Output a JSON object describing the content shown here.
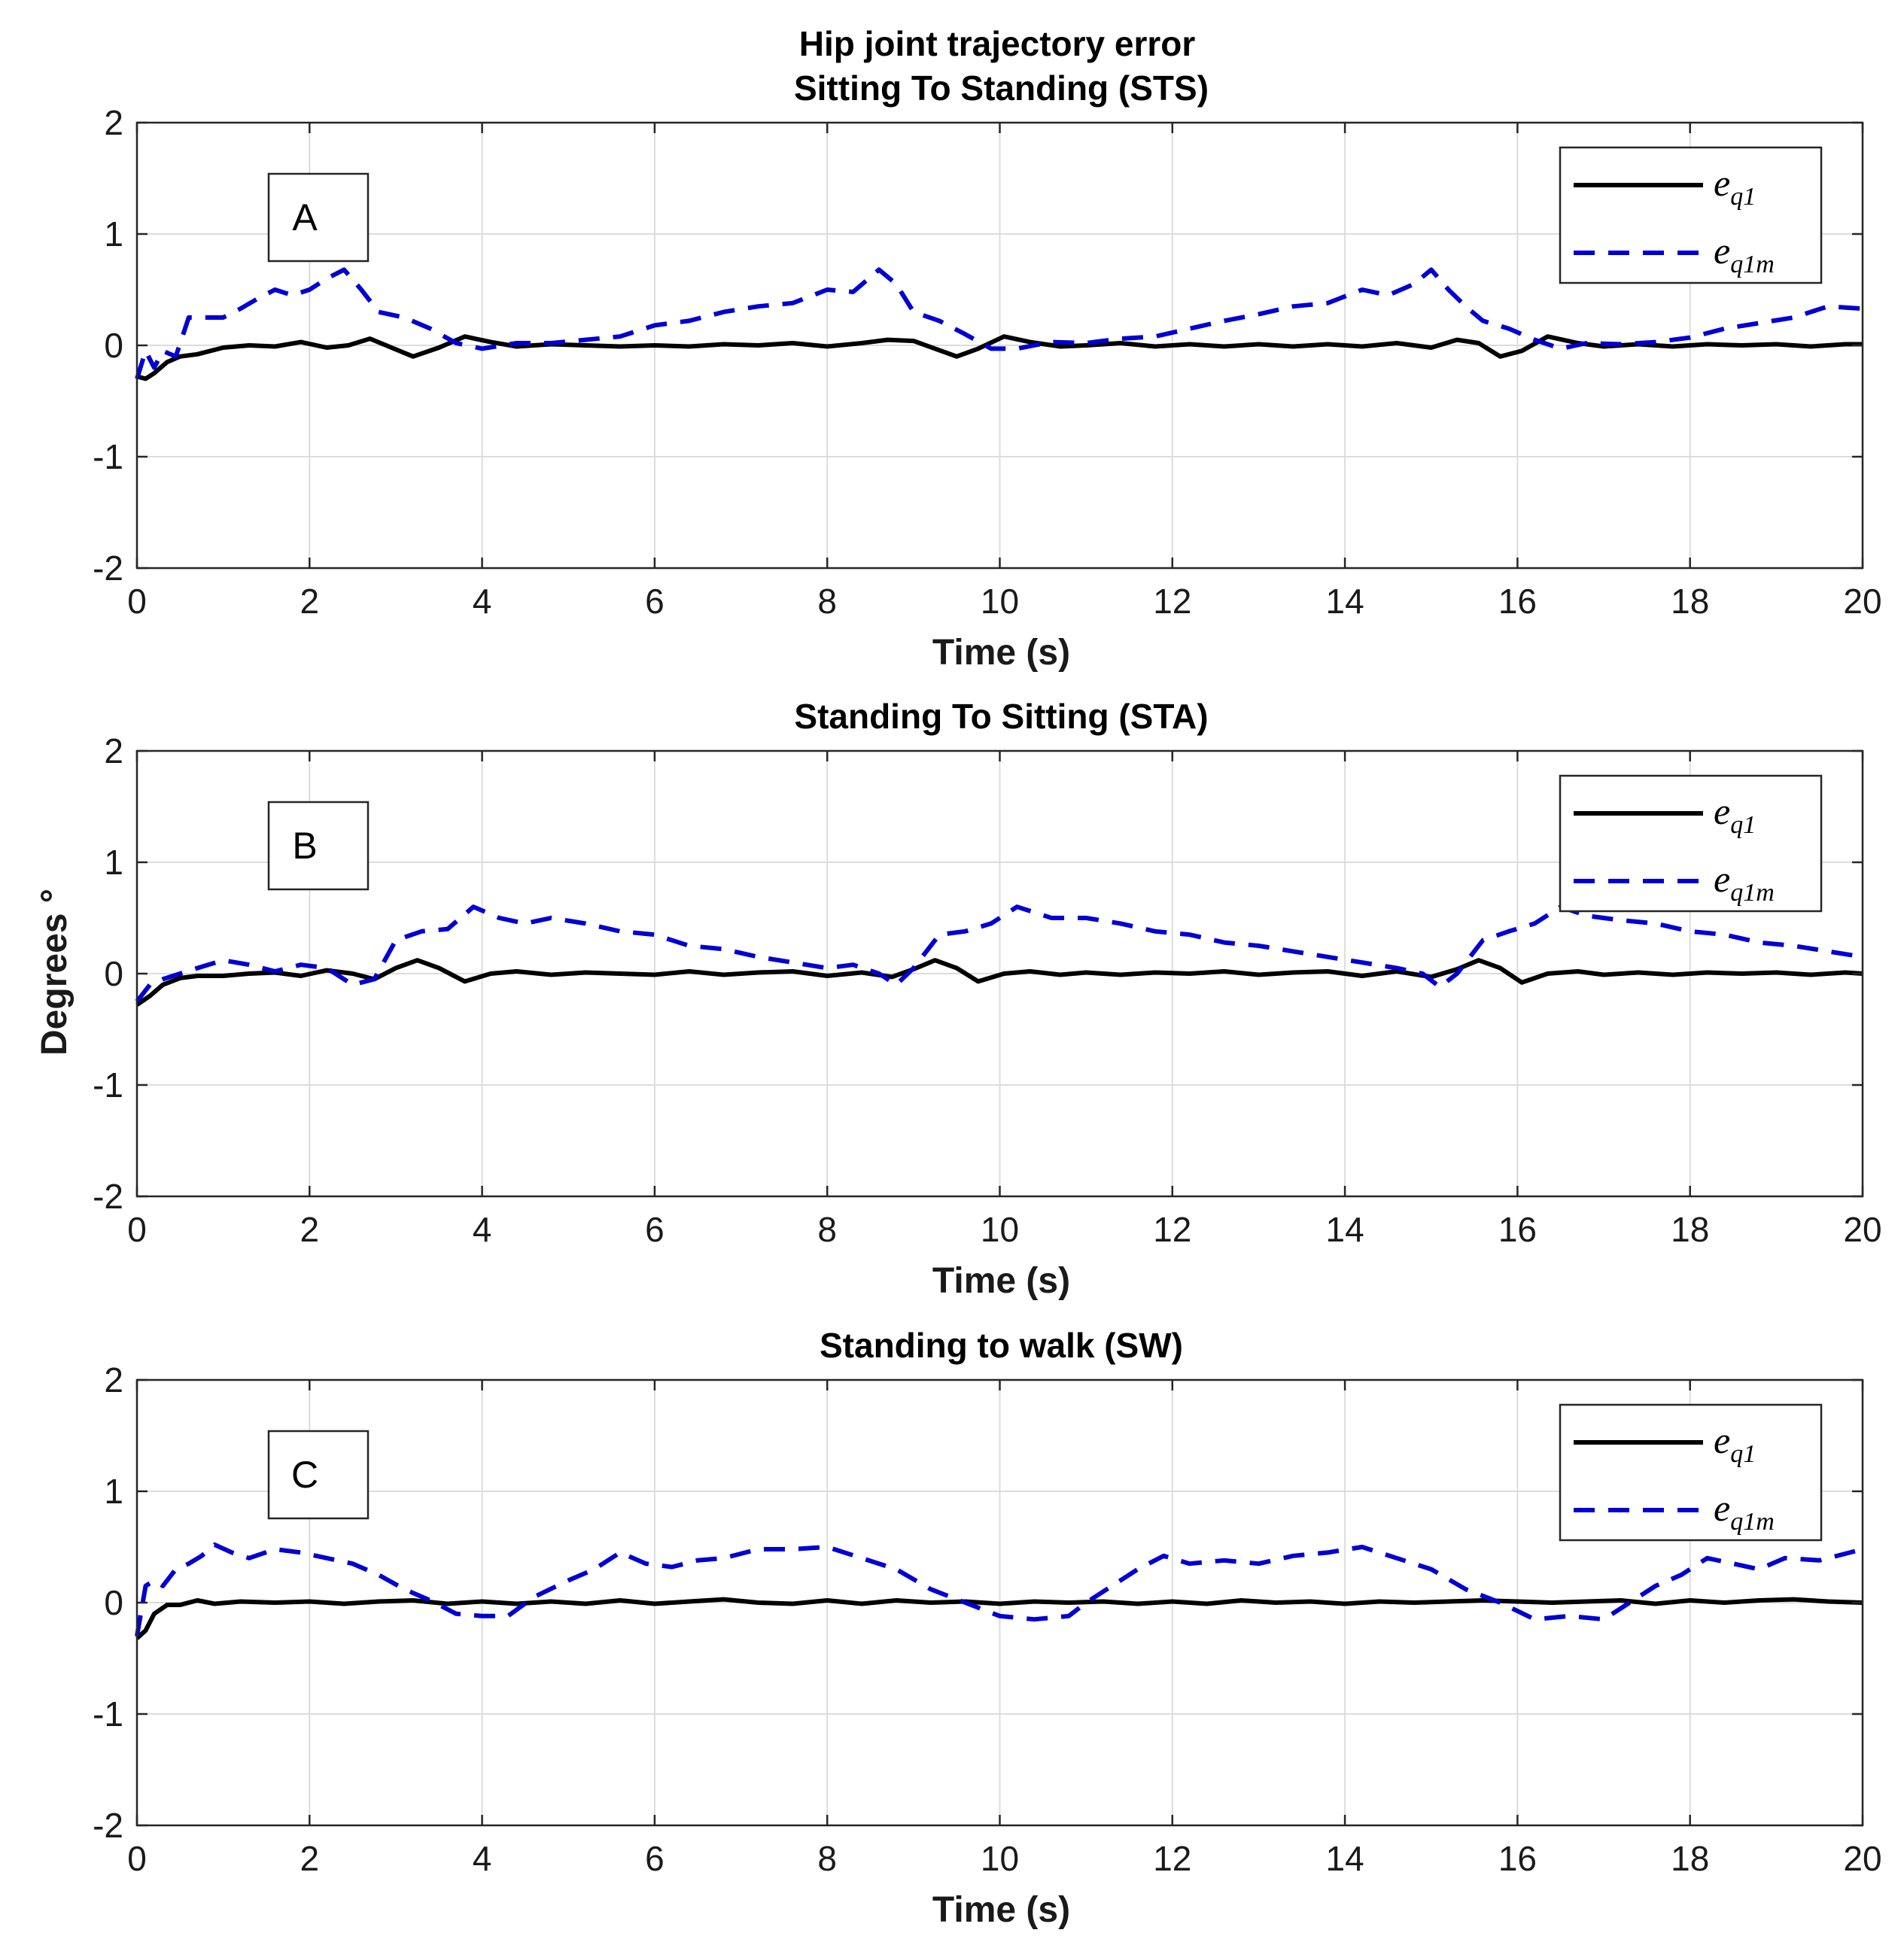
{
  "figure": {
    "title_line1": "Hip joint trajectory error",
    "shared_ylabel": "Degrees °"
  },
  "legend": {
    "series": [
      {
        "name": "e_q1",
        "base": "e",
        "subscript": "q1",
        "color": "#000000",
        "style": "solid"
      },
      {
        "name": "e_q1m",
        "base": "e",
        "subscript": "q1m",
        "color": "#0000d4",
        "style": "dashed"
      }
    ]
  },
  "chart_data": [
    {
      "type": "line",
      "panel_label": "A",
      "title": "Sitting To Standing (STS)",
      "xlabel": "Time (s)",
      "ylabel": "Degrees °",
      "xlim": [
        0,
        20
      ],
      "ylim": [
        -2,
        2
      ],
      "xticks": [
        0,
        2,
        4,
        6,
        8,
        10,
        12,
        14,
        16,
        18,
        20
      ],
      "yticks": [
        -2,
        -1,
        0,
        1,
        2
      ],
      "grid": true,
      "legend_position": "top-right",
      "series": [
        {
          "name": "e_q1",
          "x": [
            0,
            0.1,
            0.2,
            0.35,
            0.5,
            0.7,
            1.0,
            1.3,
            1.6,
            1.9,
            2.2,
            2.45,
            2.7,
            2.95,
            3.2,
            3.5,
            3.8,
            4.1,
            4.4,
            4.8,
            5.2,
            5.6,
            6.0,
            6.4,
            6.8,
            7.2,
            7.6,
            8.0,
            8.4,
            8.7,
            9.0,
            9.25,
            9.5,
            9.75,
            10.05,
            10.35,
            10.7,
            11.0,
            11.4,
            11.8,
            12.2,
            12.6,
            13.0,
            13.4,
            13.8,
            14.2,
            14.6,
            15.0,
            15.3,
            15.55,
            15.8,
            16.05,
            16.35,
            16.7,
            17.0,
            17.4,
            17.8,
            18.2,
            18.6,
            19.0,
            19.4,
            19.8,
            20
          ],
          "y": [
            -0.28,
            -0.3,
            -0.25,
            -0.15,
            -0.1,
            -0.08,
            -0.02,
            0.0,
            -0.01,
            0.03,
            -0.02,
            0.0,
            0.06,
            -0.02,
            -0.1,
            -0.02,
            0.08,
            0.03,
            -0.01,
            0.01,
            0.0,
            -0.01,
            0.0,
            -0.01,
            0.01,
            0.0,
            0.02,
            -0.01,
            0.02,
            0.05,
            0.04,
            -0.03,
            -0.1,
            -0.03,
            0.08,
            0.03,
            -0.01,
            0.0,
            0.02,
            -0.01,
            0.01,
            -0.01,
            0.01,
            -0.01,
            0.01,
            -0.01,
            0.02,
            -0.02,
            0.05,
            0.02,
            -0.1,
            -0.05,
            0.08,
            0.02,
            -0.01,
            0.01,
            -0.01,
            0.01,
            0.0,
            0.01,
            -0.01,
            0.01,
            0.01
          ]
        },
        {
          "name": "e_q1m",
          "x": [
            0,
            0.1,
            0.2,
            0.3,
            0.45,
            0.6,
            0.8,
            1.0,
            1.2,
            1.4,
            1.6,
            1.8,
            2.0,
            2.2,
            2.4,
            2.6,
            2.8,
            3.1,
            3.4,
            3.7,
            4.0,
            4.4,
            4.8,
            5.2,
            5.6,
            6.0,
            6.4,
            6.8,
            7.2,
            7.6,
            8.0,
            8.3,
            8.6,
            8.8,
            9.0,
            9.3,
            9.6,
            9.9,
            10.2,
            10.6,
            11.0,
            11.4,
            11.8,
            12.2,
            12.6,
            13.0,
            13.4,
            13.8,
            14.2,
            14.5,
            14.8,
            15.0,
            15.2,
            15.4,
            15.6,
            15.9,
            16.2,
            16.5,
            16.8,
            17.2,
            17.6,
            18.0,
            18.4,
            18.8,
            19.2,
            19.6,
            20
          ],
          "y": [
            -0.3,
            -0.05,
            -0.2,
            -0.05,
            -0.1,
            0.25,
            0.25,
            0.25,
            0.33,
            0.42,
            0.5,
            0.45,
            0.5,
            0.6,
            0.68,
            0.5,
            0.3,
            0.25,
            0.15,
            0.02,
            -0.03,
            0.02,
            0.02,
            0.05,
            0.08,
            0.18,
            0.22,
            0.3,
            0.35,
            0.38,
            0.5,
            0.48,
            0.68,
            0.55,
            0.3,
            0.22,
            0.1,
            -0.03,
            -0.03,
            0.03,
            0.02,
            0.06,
            0.08,
            0.15,
            0.22,
            0.28,
            0.35,
            0.38,
            0.5,
            0.45,
            0.55,
            0.68,
            0.5,
            0.35,
            0.22,
            0.15,
            0.05,
            -0.03,
            0.02,
            0.01,
            0.03,
            0.07,
            0.15,
            0.2,
            0.25,
            0.35,
            0.33
          ]
        }
      ]
    },
    {
      "type": "line",
      "panel_label": "B",
      "title": "Standing To Sitting (STA)",
      "xlabel": "Time (s)",
      "ylabel": "Degrees °",
      "xlim": [
        0,
        20
      ],
      "ylim": [
        -2,
        2
      ],
      "xticks": [
        0,
        2,
        4,
        6,
        8,
        10,
        12,
        14,
        16,
        18,
        20
      ],
      "yticks": [
        -2,
        -1,
        0,
        1,
        2
      ],
      "grid": true,
      "legend_position": "top-right",
      "series": [
        {
          "name": "e_q1",
          "x": [
            0,
            0.15,
            0.3,
            0.5,
            0.7,
            1.0,
            1.3,
            1.6,
            1.9,
            2.2,
            2.5,
            2.75,
            3.0,
            3.25,
            3.5,
            3.8,
            4.1,
            4.4,
            4.8,
            5.2,
            5.6,
            6.0,
            6.4,
            6.8,
            7.2,
            7.6,
            8.0,
            8.4,
            8.75,
            9.0,
            9.25,
            9.5,
            9.75,
            10.05,
            10.35,
            10.7,
            11.0,
            11.4,
            11.8,
            12.2,
            12.6,
            13.0,
            13.4,
            13.8,
            14.2,
            14.6,
            15.0,
            15.3,
            15.55,
            15.8,
            16.05,
            16.35,
            16.7,
            17.0,
            17.4,
            17.8,
            18.2,
            18.6,
            19.0,
            19.4,
            19.8,
            20
          ],
          "y": [
            -0.28,
            -0.2,
            -0.1,
            -0.04,
            -0.02,
            -0.02,
            0.0,
            0.01,
            -0.02,
            0.03,
            0.0,
            -0.05,
            0.05,
            0.12,
            0.05,
            -0.07,
            0.0,
            0.02,
            -0.01,
            0.01,
            0.0,
            -0.01,
            0.02,
            -0.01,
            0.01,
            0.02,
            -0.02,
            0.01,
            -0.03,
            0.04,
            0.12,
            0.05,
            -0.07,
            0.0,
            0.02,
            -0.01,
            0.01,
            -0.01,
            0.01,
            0.0,
            0.02,
            -0.01,
            0.01,
            0.02,
            -0.02,
            0.02,
            -0.03,
            0.04,
            0.12,
            0.05,
            -0.08,
            0.0,
            0.02,
            -0.01,
            0.01,
            -0.01,
            0.01,
            0.0,
            0.01,
            -0.01,
            0.01,
            0.0
          ]
        },
        {
          "name": "e_q1m",
          "x": [
            0,
            0.15,
            0.3,
            0.5,
            0.7,
            1.0,
            1.3,
            1.6,
            1.9,
            2.2,
            2.5,
            2.75,
            3.0,
            3.3,
            3.6,
            3.9,
            4.2,
            4.5,
            4.8,
            5.2,
            5.6,
            6.0,
            6.4,
            6.8,
            7.2,
            7.6,
            8.0,
            8.3,
            8.6,
            8.8,
            9.0,
            9.3,
            9.6,
            9.9,
            10.2,
            10.6,
            11.0,
            11.4,
            11.8,
            12.2,
            12.6,
            13.0,
            13.4,
            13.8,
            14.2,
            14.6,
            14.9,
            15.1,
            15.3,
            15.6,
            15.9,
            16.2,
            16.5,
            16.8,
            17.2,
            17.6,
            18.0,
            18.4,
            18.8,
            19.2,
            19.6,
            20
          ],
          "y": [
            -0.25,
            -0.1,
            -0.05,
            0.0,
            0.05,
            0.12,
            0.08,
            0.02,
            0.08,
            0.05,
            -0.1,
            -0.05,
            0.3,
            0.38,
            0.4,
            0.6,
            0.5,
            0.45,
            0.5,
            0.45,
            0.38,
            0.35,
            0.25,
            0.22,
            0.15,
            0.1,
            0.05,
            0.08,
            0.0,
            -0.1,
            0.05,
            0.35,
            0.38,
            0.45,
            0.6,
            0.5,
            0.5,
            0.45,
            0.38,
            0.35,
            0.28,
            0.25,
            0.2,
            0.15,
            0.1,
            0.05,
            0.0,
            -0.12,
            0.0,
            0.3,
            0.38,
            0.45,
            0.6,
            0.52,
            0.48,
            0.45,
            0.38,
            0.35,
            0.28,
            0.25,
            0.2,
            0.15
          ]
        }
      ]
    },
    {
      "type": "line",
      "panel_label": "C",
      "title": "Standing to walk (SW)",
      "xlabel": "Time (s)",
      "ylabel": "Degrees °",
      "xlim": [
        0,
        20
      ],
      "ylim": [
        -2,
        2
      ],
      "xticks": [
        0,
        2,
        4,
        6,
        8,
        10,
        12,
        14,
        16,
        18,
        20
      ],
      "yticks": [
        -2,
        -1,
        0,
        1,
        2
      ],
      "grid": true,
      "legend_position": "top-right",
      "series": [
        {
          "name": "e_q1",
          "x": [
            0,
            0.1,
            0.2,
            0.35,
            0.5,
            0.7,
            0.9,
            1.2,
            1.6,
            2.0,
            2.4,
            2.8,
            3.2,
            3.6,
            4.0,
            4.4,
            4.8,
            5.2,
            5.6,
            6.0,
            6.4,
            6.8,
            7.2,
            7.6,
            8.0,
            8.4,
            8.8,
            9.2,
            9.6,
            10.0,
            10.4,
            10.8,
            11.2,
            11.6,
            12.0,
            12.4,
            12.8,
            13.2,
            13.6,
            14.0,
            14.4,
            14.8,
            15.2,
            15.6,
            16.0,
            16.4,
            16.8,
            17.2,
            17.6,
            18.0,
            18.4,
            18.8,
            19.2,
            19.6,
            20
          ],
          "y": [
            -0.32,
            -0.25,
            -0.1,
            -0.02,
            -0.02,
            0.02,
            -0.01,
            0.01,
            0.0,
            0.01,
            -0.01,
            0.01,
            0.02,
            -0.01,
            0.01,
            -0.01,
            0.01,
            -0.01,
            0.02,
            -0.01,
            0.01,
            0.03,
            0.0,
            -0.01,
            0.02,
            -0.01,
            0.02,
            0.0,
            0.01,
            -0.01,
            0.01,
            0.0,
            0.01,
            -0.01,
            0.01,
            -0.01,
            0.02,
            0.0,
            0.01,
            -0.01,
            0.01,
            0.0,
            0.01,
            0.02,
            0.01,
            0.0,
            0.01,
            0.02,
            -0.01,
            0.02,
            0.0,
            0.02,
            0.03,
            0.01,
            0.0
          ]
        },
        {
          "name": "e_q1m",
          "x": [
            0,
            0.1,
            0.2,
            0.3,
            0.45,
            0.6,
            0.75,
            0.9,
            1.1,
            1.3,
            1.6,
            1.9,
            2.2,
            2.5,
            2.8,
            3.1,
            3.4,
            3.7,
            4.0,
            4.3,
            4.6,
            5.0,
            5.3,
            5.6,
            5.9,
            6.2,
            6.5,
            6.8,
            7.2,
            7.6,
            8.0,
            8.4,
            8.8,
            9.2,
            9.6,
            10.0,
            10.4,
            10.8,
            11.0,
            11.3,
            11.6,
            11.9,
            12.2,
            12.6,
            13.0,
            13.4,
            13.8,
            14.2,
            14.6,
            15.0,
            15.4,
            15.8,
            16.2,
            16.6,
            17.0,
            17.3,
            17.6,
            17.9,
            18.2,
            18.5,
            18.8,
            19.1,
            19.5,
            20
          ],
          "y": [
            -0.3,
            0.15,
            0.2,
            0.15,
            0.3,
            0.35,
            0.42,
            0.52,
            0.45,
            0.4,
            0.48,
            0.45,
            0.4,
            0.35,
            0.25,
            0.12,
            0.02,
            -0.1,
            -0.12,
            -0.12,
            0.05,
            0.2,
            0.3,
            0.45,
            0.35,
            0.32,
            0.38,
            0.4,
            0.48,
            0.48,
            0.5,
            0.4,
            0.3,
            0.12,
            0.0,
            -0.12,
            -0.15,
            -0.12,
            0.0,
            0.15,
            0.3,
            0.42,
            0.35,
            0.38,
            0.35,
            0.42,
            0.45,
            0.5,
            0.4,
            0.3,
            0.12,
            0.0,
            -0.15,
            -0.12,
            -0.15,
            0.0,
            0.15,
            0.25,
            0.4,
            0.35,
            0.3,
            0.4,
            0.38,
            0.48
          ]
        }
      ]
    }
  ]
}
